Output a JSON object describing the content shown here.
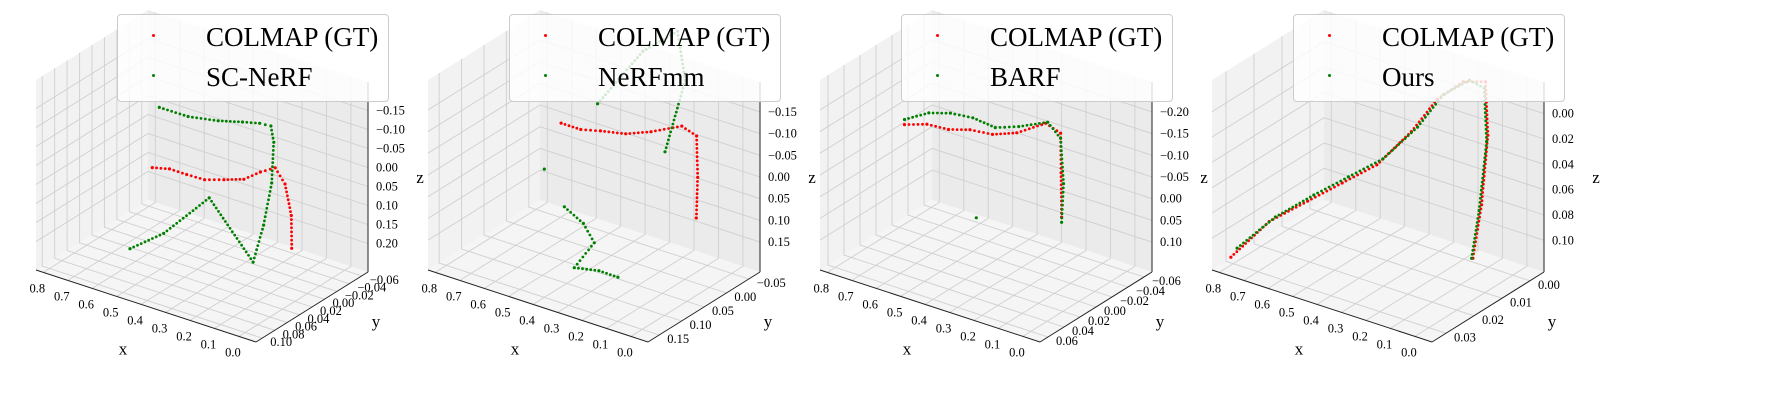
{
  "chart_data": [
    {
      "type": "scatter3d",
      "xlabel": "x",
      "ylabel": "y",
      "zlabel": "z",
      "xticks": [
        "0.8",
        "0.7",
        "0.6",
        "0.5",
        "0.4",
        "0.3",
        "0.2",
        "0.1",
        "0.0"
      ],
      "yticks": [
        "0.10",
        "0.08",
        "0.06",
        "0.04",
        "0.02",
        "0.00",
        "−0.02",
        "−0.04",
        "−0.06"
      ],
      "zticks": [
        "0.20",
        "0.15",
        "0.10",
        "0.05",
        "0.00",
        "−0.05",
        "−0.10",
        "−0.15"
      ],
      "legend_position": "top",
      "series": [
        {
          "name": "COLMAP (GT)",
          "color": "#ff0000",
          "points": [
            [
              0.7,
              -0.004,
              -0.03
            ],
            [
              0.63,
              -0.004,
              -0.02
            ],
            [
              0.56,
              -0.004,
              -0.02
            ],
            [
              0.49,
              -0.005,
              -0.02
            ],
            [
              0.42,
              -0.008,
              -0.01
            ],
            [
              0.35,
              -0.012,
              0.0
            ],
            [
              0.3,
              -0.018,
              0.02
            ],
            [
              0.26,
              -0.025,
              0.03
            ],
            [
              0.22,
              -0.025,
              0.0
            ],
            [
              0.18,
              -0.02,
              -0.06
            ],
            [
              0.15,
              -0.01,
              -0.12
            ]
          ]
        },
        {
          "name": "SC-NeRF",
          "color": "#008000",
          "points": [
            [
              0.66,
              0.0,
              0.12
            ],
            [
              0.6,
              -0.02,
              0.09
            ],
            [
              0.52,
              -0.035,
              0.08
            ],
            [
              0.45,
              -0.045,
              0.08
            ],
            [
              0.38,
              -0.045,
              0.09
            ],
            [
              0.32,
              -0.04,
              0.1
            ],
            [
              0.28,
              -0.03,
              0.08
            ],
            [
              0.26,
              -0.02,
              0.0
            ],
            [
              0.25,
              -0.005,
              -0.08
            ],
            [
              0.25,
              0.01,
              -0.15
            ],
            [
              0.4,
              0.02,
              -0.02
            ],
            [
              0.5,
              0.05,
              -0.09
            ],
            [
              0.58,
              0.07,
              -0.12
            ]
          ]
        }
      ]
    },
    {
      "type": "scatter3d",
      "xlabel": "x",
      "ylabel": "y",
      "zlabel": "z",
      "xticks": [
        "0.8",
        "0.7",
        "0.6",
        "0.5",
        "0.4",
        "0.3",
        "0.2",
        "0.1",
        "0.0"
      ],
      "yticks": [
        "0.15",
        "0.10",
        "0.05",
        "0.00",
        "−0.05"
      ],
      "zticks": [
        "0.15",
        "0.10",
        "0.05",
        "0.00",
        "−0.05",
        "−0.10",
        "−0.15"
      ],
      "legend_position": "top",
      "series": [
        {
          "name": "COLMAP (GT)",
          "color": "#ff0000",
          "points": [
            [
              0.7,
              -0.01,
              0.02
            ],
            [
              0.62,
              -0.01,
              0.02
            ],
            [
              0.54,
              -0.01,
              0.03
            ],
            [
              0.46,
              -0.02,
              0.03
            ],
            [
              0.38,
              -0.03,
              0.04
            ],
            [
              0.3,
              -0.05,
              0.05
            ],
            [
              0.24,
              -0.05,
              0.04
            ],
            [
              0.19,
              -0.03,
              -0.02
            ],
            [
              0.15,
              -0.01,
              -0.08
            ]
          ]
        },
        {
          "name": "NeRFmm",
          "color": "#008000",
          "points": [
            [
              0.7,
              0.02,
              -0.05
            ],
            [
              0.62,
              -0.04,
              0.05
            ],
            [
              0.55,
              -0.09,
              0.13
            ],
            [
              0.5,
              -0.13,
              0.15
            ],
            [
              0.4,
              -0.1,
              0.09
            ],
            [
              0.3,
              -0.02,
              0.02
            ],
            [
              0.55,
              0.05,
              -0.08
            ],
            [
              0.45,
              0.06,
              -0.09
            ],
            [
              0.36,
              0.08,
              -0.1
            ],
            [
              0.35,
              0.12,
              -0.12
            ],
            [
              0.25,
              0.12,
              -0.11
            ],
            [
              0.15,
              0.13,
              -0.1
            ]
          ]
        }
      ]
    },
    {
      "type": "scatter3d",
      "xlabel": "x",
      "ylabel": "y",
      "zlabel": "z",
      "xticks": [
        "0.8",
        "0.7",
        "0.6",
        "0.5",
        "0.4",
        "0.3",
        "0.2",
        "0.1",
        "0.0"
      ],
      "yticks": [
        "0.06",
        "0.04",
        "0.02",
        "0.00",
        "−0.02",
        "−0.04",
        "−0.06"
      ],
      "zticks": [
        "0.10",
        "0.05",
        "0.00",
        "−0.05",
        "−0.10",
        "−0.15",
        "−0.20"
      ],
      "legend_position": "top",
      "series": [
        {
          "name": "COLMAP (GT)",
          "color": "#ff0000",
          "points": [
            [
              0.78,
              -0.005,
              -0.01
            ],
            [
              0.7,
              -0.008,
              0.0
            ],
            [
              0.62,
              -0.01,
              0.0
            ],
            [
              0.54,
              -0.012,
              0.01
            ],
            [
              0.46,
              -0.015,
              0.01
            ],
            [
              0.38,
              -0.02,
              0.02
            ],
            [
              0.3,
              -0.03,
              0.04
            ],
            [
              0.24,
              -0.03,
              0.03
            ],
            [
              0.2,
              -0.02,
              -0.03
            ],
            [
              0.16,
              -0.01,
              -0.1
            ]
          ]
        },
        {
          "name": "BARF",
          "color": "#008000",
          "points": [
            [
              0.78,
              -0.005,
              0.0
            ],
            [
              0.7,
              -0.01,
              0.02
            ],
            [
              0.62,
              -0.012,
              0.03
            ],
            [
              0.54,
              -0.015,
              0.03
            ],
            [
              0.46,
              -0.018,
              0.02
            ],
            [
              0.38,
              -0.022,
              0.03
            ],
            [
              0.3,
              -0.032,
              0.04
            ],
            [
              0.24,
              -0.03,
              0.02
            ],
            [
              0.19,
              -0.02,
              -0.05
            ],
            [
              0.16,
              -0.01,
              -0.11
            ],
            [
              0.45,
              0.005,
              -0.13
            ]
          ]
        }
      ]
    },
    {
      "type": "scatter3d",
      "xlabel": "x",
      "ylabel": "y",
      "zlabel": "z",
      "xticks": [
        "0.8",
        "0.7",
        "0.6",
        "0.5",
        "0.4",
        "0.3",
        "0.2",
        "0.1",
        "0.0"
      ],
      "yticks": [
        "0.03",
        "0.02",
        "0.01",
        "0.00"
      ],
      "zticks": [
        "0.10",
        "0.08",
        "0.06",
        "0.04",
        "0.02",
        "0.00"
      ],
      "legend_position": "top",
      "series": [
        {
          "name": "COLMAP (GT)",
          "color": "#ff0000",
          "points": [
            [
              0.8,
              0.03,
              0.0
            ],
            [
              0.72,
              0.025,
              0.02
            ],
            [
              0.64,
              0.02,
              0.03
            ],
            [
              0.56,
              0.016,
              0.04
            ],
            [
              0.48,
              0.012,
              0.05
            ],
            [
              0.4,
              0.008,
              0.07
            ],
            [
              0.34,
              0.005,
              0.09
            ],
            [
              0.28,
              0.002,
              0.1
            ],
            [
              0.22,
              0.0,
              0.1
            ],
            [
              0.18,
              0.002,
              0.07
            ],
            [
              0.16,
              0.005,
              0.03
            ],
            [
              0.15,
              0.008,
              0.0
            ]
          ]
        },
        {
          "name": "Ours",
          "color": "#008000",
          "points": [
            [
              0.79,
              0.029,
              0.005
            ],
            [
              0.71,
              0.024,
              0.022
            ],
            [
              0.63,
              0.019,
              0.033
            ],
            [
              0.55,
              0.015,
              0.043
            ],
            [
              0.47,
              0.011,
              0.053
            ],
            [
              0.39,
              0.007,
              0.072
            ],
            [
              0.33,
              0.004,
              0.092
            ],
            [
              0.27,
              0.001,
              0.1
            ],
            [
              0.21,
              0.001,
              0.098
            ],
            [
              0.17,
              0.003,
              0.068
            ],
            [
              0.155,
              0.006,
              0.028
            ],
            [
              0.14,
              0.009,
              0.002
            ]
          ]
        }
      ]
    }
  ]
}
